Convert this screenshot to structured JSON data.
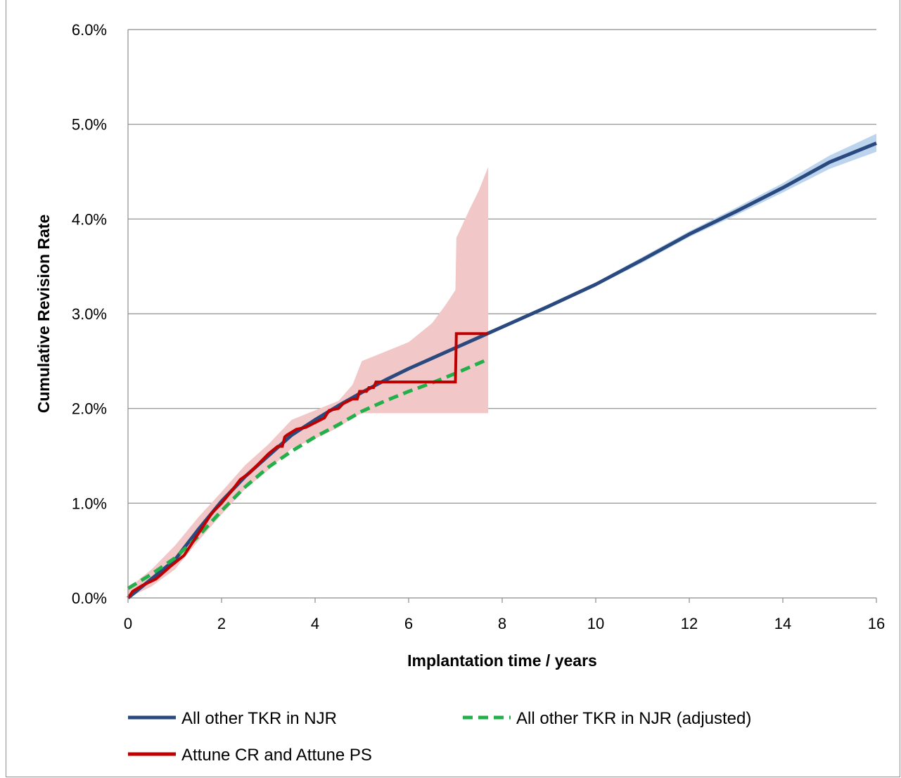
{
  "chart_data": {
    "type": "line",
    "title": "",
    "xlabel": "Implantation time  / years",
    "ylabel": "Cumulative Revision Rate",
    "xlim": [
      0,
      16
    ],
    "ylim": [
      0.0,
      6.0
    ],
    "x_ticks": [
      0,
      2,
      4,
      6,
      8,
      10,
      12,
      14,
      16
    ],
    "x_tick_labels": [
      "0",
      "2",
      "4",
      "6",
      "8",
      "10",
      "12",
      "14",
      "16"
    ],
    "y_ticks": [
      0,
      1,
      2,
      3,
      4,
      5,
      6
    ],
    "y_tick_labels": [
      "0.0%",
      "1.0%",
      "2.0%",
      "3.0%",
      "4.0%",
      "5.0%",
      "6.0%"
    ],
    "grid": "horizontal",
    "legend_position": "bottom",
    "colors": {
      "navy": "#2a4a7f",
      "navy_band": "#bcd4ee",
      "green": "#22b04b",
      "red": "#c00000",
      "red_band": "#f2c7c7",
      "grid": "#8c8c8c"
    },
    "series": [
      {
        "name": "All other TKR in NJR",
        "style": "solid",
        "color": "#2a4a7f",
        "x": [
          0,
          0.5,
          1,
          1.5,
          2,
          2.5,
          3,
          3.5,
          4,
          4.5,
          5,
          5.5,
          6,
          6.5,
          7,
          7.5,
          8,
          9,
          10,
          11,
          12,
          13,
          14,
          15,
          16
        ],
        "y": [
          0.0,
          0.2,
          0.4,
          0.72,
          1.02,
          1.28,
          1.5,
          1.72,
          1.88,
          2.03,
          2.17,
          2.3,
          2.42,
          2.53,
          2.64,
          2.75,
          2.86,
          3.08,
          3.31,
          3.57,
          3.84,
          4.08,
          4.33,
          4.6,
          4.8
        ],
        "ci_lower": [
          0.0,
          0.19,
          0.38,
          0.7,
          1.0,
          1.26,
          1.48,
          1.7,
          1.86,
          2.01,
          2.15,
          2.28,
          2.4,
          2.51,
          2.62,
          2.73,
          2.84,
          3.06,
          3.29,
          3.54,
          3.81,
          4.04,
          4.28,
          4.53,
          4.71
        ],
        "ci_upper": [
          0.0,
          0.21,
          0.42,
          0.74,
          1.04,
          1.3,
          1.52,
          1.74,
          1.9,
          2.05,
          2.19,
          2.32,
          2.44,
          2.55,
          2.66,
          2.77,
          2.88,
          3.1,
          3.33,
          3.6,
          3.87,
          4.12,
          4.38,
          4.67,
          4.9
        ]
      },
      {
        "name": "All other TKR in NJR (adjusted)",
        "style": "dashed",
        "color": "#22b04b",
        "x": [
          0,
          0.5,
          1,
          1.5,
          2,
          2.5,
          3,
          3.5,
          4,
          4.5,
          5,
          5.5,
          6,
          6.5,
          7,
          7.7
        ],
        "y": [
          0.1,
          0.25,
          0.42,
          0.65,
          0.92,
          1.17,
          1.38,
          1.55,
          1.7,
          1.83,
          1.97,
          2.08,
          2.18,
          2.27,
          2.37,
          2.52
        ]
      },
      {
        "name": "Attune CR and Attune PS",
        "style": "solid",
        "color": "#c00000",
        "x": [
          0,
          0.1,
          0.3,
          0.6,
          0.9,
          1.2,
          1.4,
          1.6,
          1.8,
          2.0,
          2.2,
          2.4,
          2.6,
          2.8,
          3.0,
          3.2,
          3.3,
          3.35,
          3.4,
          3.6,
          3.8,
          4.0,
          4.2,
          4.3,
          4.5,
          4.6,
          4.8,
          4.9,
          4.95,
          5.1,
          5.15,
          5.25,
          5.3,
          6.0,
          7.0,
          7.02,
          7.7
        ],
        "y": [
          0.0,
          0.07,
          0.13,
          0.2,
          0.33,
          0.45,
          0.6,
          0.75,
          0.9,
          1.0,
          1.12,
          1.25,
          1.32,
          1.42,
          1.52,
          1.6,
          1.6,
          1.7,
          1.72,
          1.78,
          1.8,
          1.85,
          1.9,
          1.98,
          2.0,
          2.05,
          2.1,
          2.1,
          2.18,
          2.18,
          2.22,
          2.22,
          2.28,
          2.28,
          2.28,
          2.79,
          2.79
        ],
        "ci_x": [
          0,
          0.5,
          1,
          1.5,
          2,
          2.5,
          3,
          3.5,
          4,
          4.5,
          4.8,
          5.0,
          5.5,
          6.0,
          6.5,
          6.8,
          7.0,
          7.02,
          7.3,
          7.5,
          7.7
        ],
        "ci_lower": [
          0.0,
          0.12,
          0.3,
          0.6,
          0.88,
          1.15,
          1.35,
          1.58,
          1.68,
          1.8,
          1.9,
          1.95,
          1.95,
          1.95,
          1.95,
          1.95,
          1.95,
          1.95,
          1.95,
          1.95,
          1.95
        ],
        "ci_upper": [
          0.1,
          0.3,
          0.55,
          0.85,
          1.12,
          1.4,
          1.62,
          1.88,
          1.98,
          2.08,
          2.25,
          2.5,
          2.6,
          2.7,
          2.9,
          3.1,
          3.25,
          3.8,
          4.1,
          4.3,
          4.55
        ]
      }
    ]
  }
}
